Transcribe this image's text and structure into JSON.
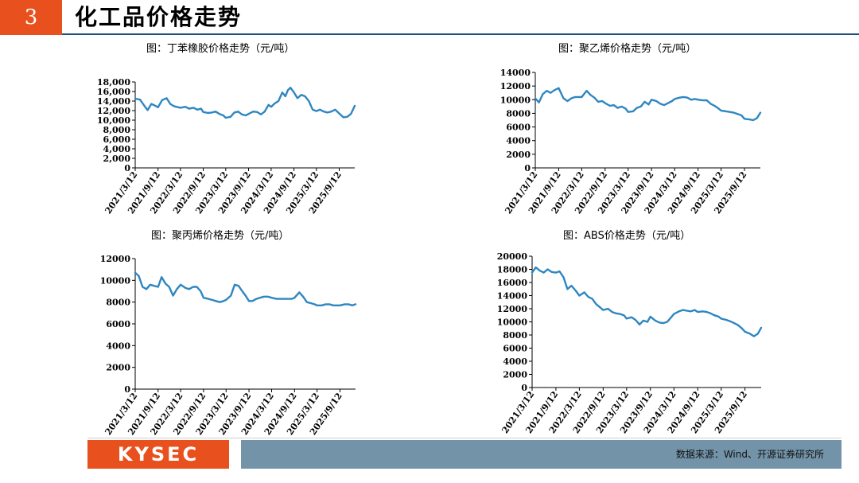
{
  "header": {
    "page_number": "3",
    "title": "化工品价格走势"
  },
  "footer": {
    "logo": "KYSEC",
    "source": "数据来源：Wind、开源证券研究所"
  },
  "colors": {
    "accent": "#e8501e",
    "series": "#2e86c1",
    "footer_bar": "#7293a8",
    "title_rule": "#1f4e79"
  },
  "chart_data": [
    {
      "type": "line",
      "title": "图：丁苯橡胶价格走势（元/吨）",
      "xlabel": "",
      "ylabel": "",
      "x_ticks": [
        "2021/3/12",
        "2021/9/12",
        "2022/3/12",
        "2022/9/12",
        "2023/3/12",
        "2023/9/12",
        "2024/3/12",
        "2024/9/12",
        "2025/3/12",
        "2025/9/12"
      ],
      "x_range": [
        "2021/3/12",
        "2026/1/15"
      ],
      "y_ticks": [
        "0",
        "2,000",
        "4,000",
        "6,000",
        "8,000",
        "10,000",
        "12,000",
        "14,000",
        "16,000",
        "18,000"
      ],
      "ylim": [
        0,
        18000
      ],
      "grid": false,
      "x": [
        "2021/3/12",
        "2021/4/20",
        "2021/5/25",
        "2021/6/20",
        "2021/7/20",
        "2021/8/15",
        "2021/9/12",
        "2021/10/15",
        "2021/11/20",
        "2021/12/20",
        "2022/1/20",
        "2022/3/12",
        "2022/4/20",
        "2022/5/20",
        "2022/6/25",
        "2022/7/25",
        "2022/8/25",
        "2022/9/12",
        "2022/10/20",
        "2022/11/20",
        "2022/12/20",
        "2023/1/20",
        "2023/2/20",
        "2023/3/12",
        "2023/4/20",
        "2023/5/20",
        "2023/6/20",
        "2023/7/20",
        "2023/8/20",
        "2023/9/12",
        "2023/10/20",
        "2023/11/20",
        "2023/12/20",
        "2024/1/20",
        "2024/2/20",
        "2024/3/12",
        "2024/4/10",
        "2024/5/10",
        "2024/6/10",
        "2024/7/5",
        "2024/7/25",
        "2024/8/15",
        "2024/9/12",
        "2024/10/10",
        "2024/11/10",
        "2024/12/10",
        "2025/1/10",
        "2025/2/10",
        "2025/3/12",
        "2025/4/10",
        "2025/5/10",
        "2025/6/10",
        "2025/7/10",
        "2025/8/10",
        "2025/9/12",
        "2025/10/15",
        "2025/11/15",
        "2025/12/15",
        "2026/1/15"
      ],
      "values": [
        14500,
        14300,
        13000,
        12100,
        13400,
        13100,
        12700,
        14200,
        14600,
        13400,
        12900,
        12600,
        12800,
        12400,
        12600,
        12200,
        12400,
        11700,
        11500,
        11600,
        11800,
        11300,
        11000,
        10500,
        10700,
        11600,
        11800,
        11200,
        11000,
        11300,
        11800,
        11700,
        11200,
        11800,
        13200,
        12800,
        13500,
        14000,
        15800,
        15000,
        16300,
        16800,
        15800,
        14600,
        15300,
        15000,
        14000,
        12200,
        11900,
        12200,
        11800,
        11600,
        11800,
        12200,
        11400,
        10600,
        10700,
        11300,
        13000
      ]
    },
    {
      "type": "line",
      "title": "图：聚乙烯价格走势（元/吨）",
      "xlabel": "",
      "ylabel": "",
      "x_ticks": [
        "2021/3/12",
        "2021/9/12",
        "2022/3/12",
        "2022/9/12",
        "2023/3/12",
        "2023/9/12",
        "2024/3/12",
        "2024/9/12",
        "2025/3/12",
        "2025/9/12"
      ],
      "x_range": [
        "2021/3/12",
        "2026/1/15"
      ],
      "y_ticks": [
        "0",
        "2000",
        "4000",
        "6000",
        "8000",
        "10000",
        "12000",
        "14000"
      ],
      "ylim": [
        0,
        14000
      ],
      "grid": false,
      "x": [
        "2021/3/12",
        "2021/4/10",
        "2021/5/10",
        "2021/6/10",
        "2021/7/10",
        "2021/8/10",
        "2021/9/12",
        "2021/10/20",
        "2021/11/20",
        "2021/12/20",
        "2022/1/20",
        "2022/3/12",
        "2022/4/20",
        "2022/5/20",
        "2022/6/20",
        "2022/7/20",
        "2022/8/20",
        "2022/9/12",
        "2022/10/20",
        "2022/11/20",
        "2022/12/20",
        "2023/1/20",
        "2023/2/20",
        "2023/3/12",
        "2023/4/20",
        "2023/5/20",
        "2023/6/20",
        "2023/7/20",
        "2023/8/20",
        "2023/9/12",
        "2023/10/20",
        "2023/11/20",
        "2023/12/20",
        "2024/1/20",
        "2024/2/20",
        "2024/3/12",
        "2024/4/20",
        "2024/5/20",
        "2024/6/20",
        "2024/7/20",
        "2024/8/20",
        "2024/9/12",
        "2024/10/20",
        "2024/11/20",
        "2024/12/20",
        "2025/1/20",
        "2025/2/20",
        "2025/3/12",
        "2025/4/20",
        "2025/5/20",
        "2025/6/20",
        "2025/7/20",
        "2025/8/20",
        "2025/9/12",
        "2025/10/20",
        "2025/11/20",
        "2025/12/20",
        "2026/1/15"
      ],
      "values": [
        10200,
        9600,
        10800,
        11300,
        11000,
        11400,
        11700,
        10200,
        9800,
        10200,
        10400,
        10400,
        11300,
        10700,
        10300,
        9700,
        9800,
        9500,
        9100,
        9200,
        8800,
        9000,
        8700,
        8200,
        8300,
        8800,
        9000,
        9700,
        9300,
        10000,
        9800,
        9400,
        9200,
        9500,
        9800,
        10100,
        10300,
        10400,
        10300,
        10000,
        10100,
        10000,
        9900,
        9900,
        9400,
        9100,
        8700,
        8400,
        8300,
        8200,
        8100,
        7900,
        7700,
        7200,
        7100,
        7000,
        7300,
        8100
      ]
    },
    {
      "type": "line",
      "title": "图：聚丙烯价格走势（元/吨）",
      "xlabel": "",
      "ylabel": "",
      "x_ticks": [
        "2021/3/12",
        "2021/9/12",
        "2022/3/12",
        "2022/9/12",
        "2023/3/12",
        "2023/9/12",
        "2024/3/12",
        "2024/9/12",
        "2025/3/12",
        "2025/9/12"
      ],
      "x_range": [
        "2021/3/12",
        "2026/1/15"
      ],
      "y_ticks": [
        "0",
        "2000",
        "4000",
        "6000",
        "8000",
        "10000",
        "12000"
      ],
      "ylim": [
        0,
        12000
      ],
      "grid": false,
      "x": [
        "2021/3/12",
        "2021/4/10",
        "2021/5/10",
        "2021/6/10",
        "2021/7/10",
        "2021/8/10",
        "2021/9/12",
        "2021/10/10",
        "2021/11/10",
        "2021/12/10",
        "2022/1/10",
        "2022/2/10",
        "2022/3/12",
        "2022/4/20",
        "2022/5/20",
        "2022/6/20",
        "2022/7/20",
        "2022/8/20",
        "2022/9/12",
        "2022/10/20",
        "2022/11/20",
        "2022/12/20",
        "2023/1/20",
        "2023/2/20",
        "2023/3/12",
        "2023/4/20",
        "2023/5/20",
        "2023/6/20",
        "2023/7/20",
        "2023/8/15",
        "2023/9/12",
        "2023/10/10",
        "2023/11/10",
        "2023/12/10",
        "2024/1/10",
        "2024/2/10",
        "2024/3/12",
        "2024/4/20",
        "2024/5/20",
        "2024/6/20",
        "2024/7/20",
        "2024/8/20",
        "2024/9/12",
        "2024/10/20",
        "2024/11/20",
        "2024/12/20",
        "2025/1/20",
        "2025/2/20",
        "2025/3/12",
        "2025/4/20",
        "2025/5/20",
        "2025/6/20",
        "2025/7/20",
        "2025/8/20",
        "2025/9/12",
        "2025/10/20",
        "2025/11/20",
        "2025/12/20",
        "2026/1/15"
      ],
      "values": [
        10700,
        10400,
        9400,
        9200,
        9600,
        9500,
        9400,
        10300,
        9700,
        9400,
        8600,
        9200,
        9600,
        9300,
        9200,
        9400,
        9400,
        9000,
        8400,
        8300,
        8200,
        8100,
        8000,
        8100,
        8200,
        8600,
        9600,
        9500,
        9000,
        8600,
        8100,
        8100,
        8300,
        8400,
        8500,
        8500,
        8400,
        8300,
        8300,
        8300,
        8300,
        8300,
        8400,
        8900,
        8500,
        8000,
        7900,
        7800,
        7700,
        7700,
        7800,
        7800,
        7700,
        7700,
        7700,
        7800,
        7800,
        7700,
        7800
      ]
    },
    {
      "type": "line",
      "title": "图：ABS价格走势（元/吨）",
      "xlabel": "",
      "ylabel": "",
      "x_ticks": [
        "2021/3/12",
        "2021/9/12",
        "2022/3/12",
        "2022/9/12",
        "2023/3/12",
        "2023/9/12",
        "2024/3/12",
        "2024/9/12",
        "2025/3/12",
        "2025/9/12"
      ],
      "x_range": [
        "2021/3/12",
        "2026/1/15"
      ],
      "y_ticks": [
        "0",
        "2000",
        "4000",
        "6000",
        "8000",
        "10000",
        "12000",
        "14000",
        "16000",
        "18000",
        "20000"
      ],
      "ylim": [
        0,
        20000
      ],
      "grid": false,
      "x": [
        "2021/3/12",
        "2021/4/10",
        "2021/5/10",
        "2021/6/10",
        "2021/7/10",
        "2021/8/10",
        "2021/9/12",
        "2021/10/10",
        "2021/11/10",
        "2021/12/10",
        "2022/1/10",
        "2022/2/10",
        "2022/3/12",
        "2022/4/20",
        "2022/5/20",
        "2022/6/20",
        "2022/7/20",
        "2022/8/20",
        "2022/9/12",
        "2022/10/20",
        "2022/11/20",
        "2022/12/20",
        "2023/1/20",
        "2023/2/20",
        "2023/3/12",
        "2023/4/20",
        "2023/5/20",
        "2023/6/20",
        "2023/7/20",
        "2023/8/20",
        "2023/9/12",
        "2023/10/20",
        "2023/11/20",
        "2023/12/20",
        "2024/1/20",
        "2024/2/20",
        "2024/3/12",
        "2024/4/20",
        "2024/5/20",
        "2024/6/20",
        "2024/7/20",
        "2024/8/20",
        "2024/9/12",
        "2024/10/20",
        "2024/11/20",
        "2024/12/20",
        "2025/1/20",
        "2025/2/20",
        "2025/3/12",
        "2025/4/20",
        "2025/5/20",
        "2025/6/20",
        "2025/7/20",
        "2025/8/20",
        "2025/9/12",
        "2025/10/20",
        "2025/11/20",
        "2025/12/20",
        "2026/1/15"
      ],
      "values": [
        17500,
        18300,
        17800,
        17500,
        18000,
        17600,
        17500,
        17700,
        16800,
        15000,
        15500,
        14800,
        14000,
        14500,
        13800,
        13500,
        12700,
        12200,
        11800,
        12000,
        11500,
        11300,
        11200,
        11000,
        10500,
        10700,
        10300,
        9600,
        10200,
        10000,
        10800,
        10200,
        9900,
        9800,
        10000,
        10700,
        11200,
        11600,
        11800,
        11700,
        11600,
        11800,
        11500,
        11600,
        11500,
        11300,
        11000,
        10800,
        10500,
        10300,
        10100,
        9800,
        9500,
        9000,
        8500,
        8200,
        7800,
        8200,
        9100
      ]
    }
  ]
}
